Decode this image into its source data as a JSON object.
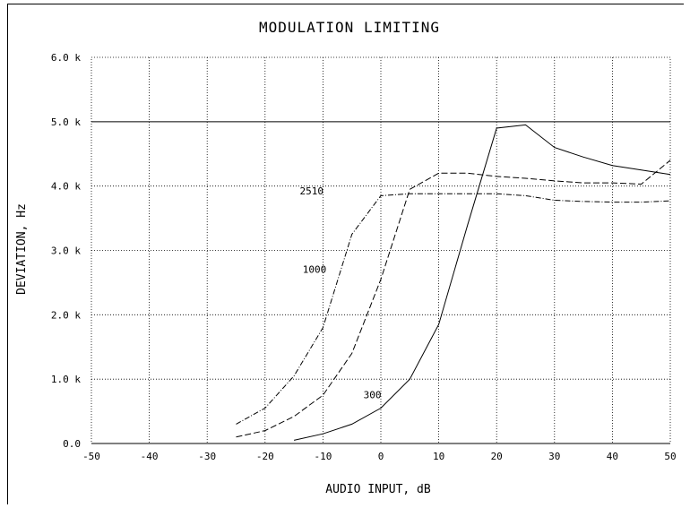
{
  "chart_data": {
    "type": "line",
    "title": "MODULATION LIMITING",
    "xlabel": "AUDIO INPUT, dB",
    "ylabel": "DEVIATION, Hz",
    "xlim": [
      -50,
      50
    ],
    "ylim": [
      0,
      6000
    ],
    "x_ticks": [
      -50,
      -40,
      -30,
      -20,
      -10,
      0,
      10,
      20,
      30,
      40,
      50
    ],
    "x_tick_labels": [
      "-50",
      "-40",
      "-30",
      "-20",
      "-10",
      "0",
      "10",
      "20",
      "30",
      "40",
      "50"
    ],
    "y_ticks": [
      0,
      1000,
      2000,
      3000,
      4000,
      5000,
      6000
    ],
    "y_tick_labels": [
      "0.0",
      "1.0 k",
      "2.0 k",
      "3.0 k",
      "4.0 k",
      "5.0 k",
      "6.0 k"
    ],
    "grid": true,
    "reference_line": {
      "y": 5000
    },
    "series": [
      {
        "name": "300",
        "style": "solid",
        "x": [
          -15,
          -10,
          -5,
          0,
          5,
          10,
          15,
          20,
          25,
          30,
          35,
          40,
          45,
          50
        ],
        "y": [
          50,
          150,
          300,
          550,
          1000,
          1850,
          3400,
          4900,
          4950,
          4600,
          4450,
          4320,
          4250,
          4180
        ]
      },
      {
        "name": "1000",
        "style": "dashed",
        "x": [
          -25,
          -20,
          -15,
          -10,
          -5,
          0,
          5,
          10,
          15,
          20,
          25,
          30,
          35,
          40,
          45,
          50
        ],
        "y": [
          100,
          200,
          420,
          750,
          1400,
          2550,
          3950,
          4200,
          4200,
          4150,
          4120,
          4080,
          4050,
          4050,
          4030,
          4400
        ]
      },
      {
        "name": "2510",
        "style": "dashdot",
        "x": [
          -25,
          -20,
          -15,
          -10,
          -5,
          0,
          5,
          10,
          15,
          20,
          25,
          30,
          35,
          40,
          45,
          50
        ],
        "y": [
          300,
          550,
          1050,
          1800,
          3250,
          3850,
          3880,
          3880,
          3880,
          3880,
          3850,
          3780,
          3760,
          3750,
          3750,
          3770
        ]
      }
    ]
  }
}
